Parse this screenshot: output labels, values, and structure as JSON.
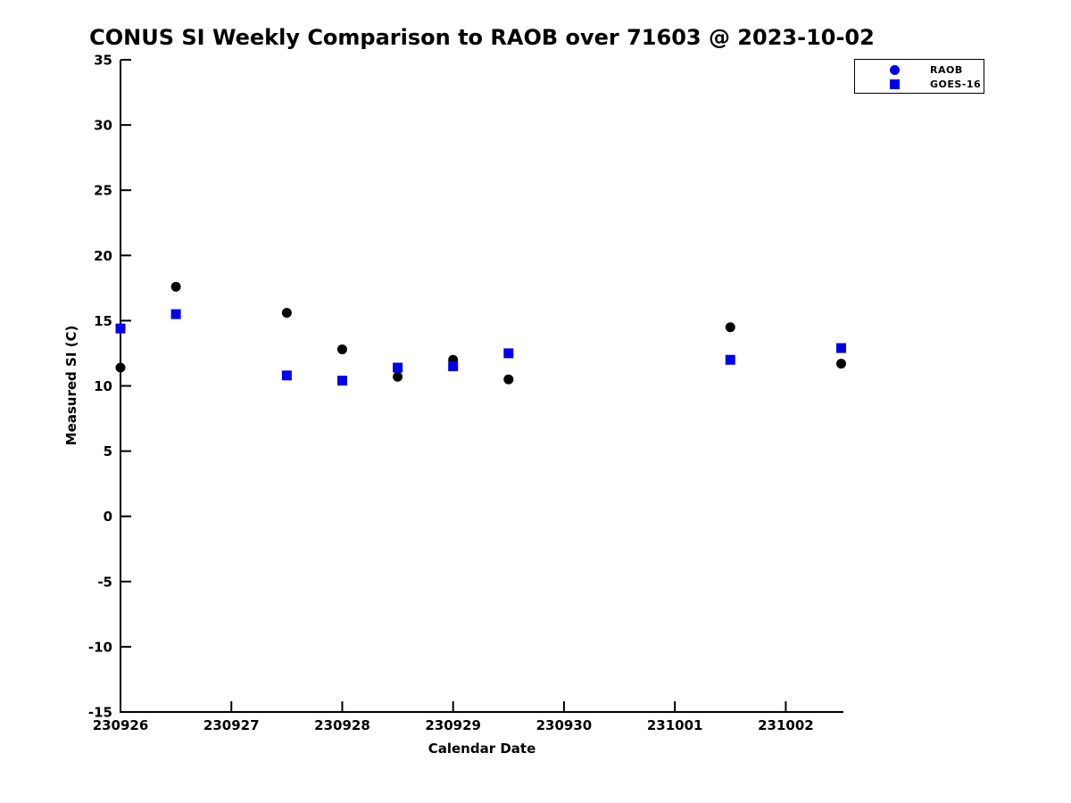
{
  "chart_data": {
    "type": "scatter",
    "title": "CONUS SI Weekly Comparison to RAOB over 71603 @ 2023-10-02",
    "xlabel": "Calendar Date",
    "ylabel": "Measured SI (C)",
    "x_tick_labels": [
      "230926",
      "230927",
      "230928",
      "230929",
      "230930",
      "231001",
      "231002"
    ],
    "x_tick_positions": [
      0,
      1,
      2,
      3,
      4,
      5,
      6
    ],
    "y_ticks": [
      35,
      30,
      25,
      20,
      15,
      10,
      5,
      0,
      -5,
      -10,
      -15
    ],
    "xlim": [
      0,
      6.52
    ],
    "ylim": [
      -15,
      35
    ],
    "x_units": "days offset from 230926 (0.5 = 12Z sounding)",
    "grid": "off",
    "legend_position": "top-right",
    "axis_color": "#000000",
    "series": [
      {
        "name": "RAOB",
        "marker": "circle",
        "color": "#000000",
        "legend_marker_color": "#0000ee",
        "points": [
          {
            "x": 0.0,
            "y": 11.4
          },
          {
            "x": 0.5,
            "y": 17.6
          },
          {
            "x": 1.5,
            "y": 15.6
          },
          {
            "x": 2.0,
            "y": 12.8
          },
          {
            "x": 2.5,
            "y": 10.7
          },
          {
            "x": 3.0,
            "y": 12.0
          },
          {
            "x": 3.5,
            "y": 10.5
          },
          {
            "x": 5.5,
            "y": 14.5
          },
          {
            "x": 6.5,
            "y": 11.7
          }
        ]
      },
      {
        "name": "GOES-16",
        "marker": "square",
        "color": "#0000ee",
        "legend_marker_color": "#0000ee",
        "points": [
          {
            "x": 0.0,
            "y": 14.4
          },
          {
            "x": 0.5,
            "y": 15.5
          },
          {
            "x": 1.5,
            "y": 10.8
          },
          {
            "x": 2.0,
            "y": 10.4
          },
          {
            "x": 2.5,
            "y": 11.4
          },
          {
            "x": 3.0,
            "y": 11.5
          },
          {
            "x": 3.5,
            "y": 12.5
          },
          {
            "x": 5.5,
            "y": 12.0
          },
          {
            "x": 6.5,
            "y": 12.9
          }
        ]
      }
    ]
  }
}
